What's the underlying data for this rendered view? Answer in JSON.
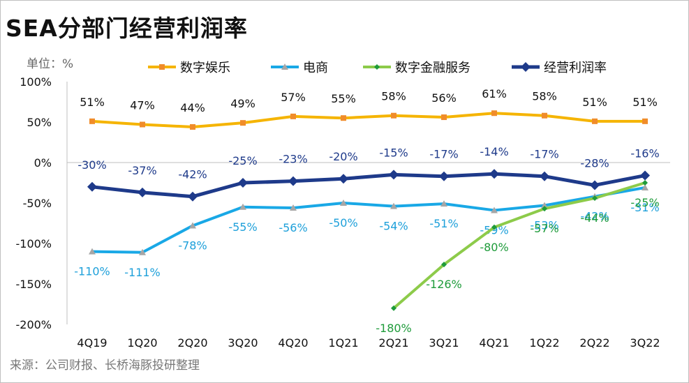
{
  "chart_data": {
    "type": "line",
    "title": "SEA分部门经营利润率",
    "unit_label": "单位：%",
    "source": "来源：公司财报、长桥海豚投研整理",
    "categories": [
      "4Q19",
      "1Q20",
      "2Q20",
      "3Q20",
      "4Q20",
      "1Q21",
      "2Q21",
      "3Q21",
      "4Q21",
      "1Q22",
      "2Q22",
      "3Q22"
    ],
    "ylim": [
      -200,
      100
    ],
    "yticks": [
      100,
      50,
      0,
      -50,
      -100,
      -150,
      -200
    ],
    "ytick_labels": [
      "100%",
      "50%",
      "0%",
      "-50%",
      "-100%",
      "-150%",
      "-200%"
    ],
    "legend_position": "top",
    "series": [
      {
        "name": "数字娱乐",
        "color": "#F5B400",
        "marker": "square",
        "label_color": "#111111",
        "values": [
          51,
          47,
          44,
          49,
          57,
          55,
          58,
          56,
          61,
          58,
          51,
          51
        ],
        "labels": [
          "51%",
          "47%",
          "44%",
          "49%",
          "57%",
          "55%",
          "58%",
          "56%",
          "61%",
          "58%",
          "51%",
          "51%"
        ]
      },
      {
        "name": "电商",
        "color": "#19A8E6",
        "marker": "triangle",
        "label_color": "#1EA0DA",
        "values": [
          -110,
          -111,
          -78,
          -55,
          -56,
          -50,
          -54,
          -51,
          -59,
          -53,
          -42,
          -31
        ],
        "labels": [
          "-110%",
          "-111%",
          "-78%",
          "-55%",
          "-56%",
          "-50%",
          "-54%",
          "-51%",
          "-59%",
          "-53%",
          "-42%",
          "-31%"
        ]
      },
      {
        "name": "数字金融服务",
        "color": "#8DCB4A",
        "marker": "diamond",
        "label_color": "#1E9B3A",
        "values": [
          null,
          null,
          null,
          null,
          null,
          null,
          -180,
          -126,
          -80,
          -57,
          -44,
          -25
        ],
        "labels": [
          "",
          "",
          "",
          "",
          "",
          "",
          "-180%",
          "-126%",
          "-80%",
          "-57%",
          "-44%",
          "-25%"
        ]
      },
      {
        "name": "经营利润率",
        "color": "#1E3A8A",
        "marker": "diamond",
        "label_color": "#1E3A8A",
        "values": [
          -30,
          -37,
          -42,
          -25,
          -23,
          -20,
          -15,
          -17,
          -14,
          -17,
          -28,
          -16
        ],
        "labels": [
          "-30%",
          "-37%",
          "-42%",
          "-25%",
          "-23%",
          "-20%",
          "-15%",
          "-17%",
          "-14%",
          "-17%",
          "-28%",
          "-16%"
        ]
      }
    ]
  }
}
